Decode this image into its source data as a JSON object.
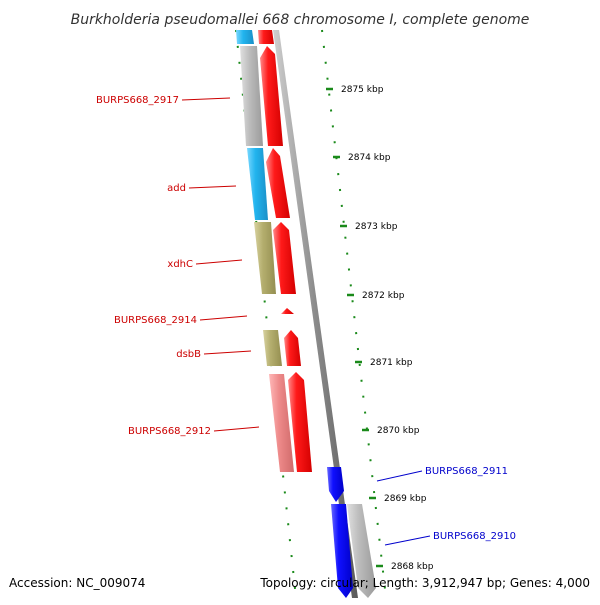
{
  "title": "Burkholderia pseudomallei 668 chromosome I, complete genome",
  "footer": {
    "accession": "Accession: NC_009074",
    "summary": "Topology: circular; Length: 3,912,947 bp; Genes: 4,000"
  },
  "scale_labels": [
    "2875 kbp",
    "2874 kbp",
    "2873 kbp",
    "2872 kbp",
    "2871 kbp",
    "2870 kbp",
    "2869 kbp",
    "2868 kbp"
  ],
  "gene_labels": [
    {
      "text": "BURPS668_2917",
      "color": "#cc0000"
    },
    {
      "text": "add",
      "color": "#cc0000"
    },
    {
      "text": "xdhC",
      "color": "#cc0000"
    },
    {
      "text": "BURPS668_2914",
      "color": "#cc0000"
    },
    {
      "text": "dsbB",
      "color": "#cc0000"
    },
    {
      "text": "BURPS668_2912",
      "color": "#cc0000"
    },
    {
      "text": "BURPS668_2911",
      "color": "#0000cc"
    },
    {
      "text": "BURPS668_2910",
      "color": "#0000cc"
    }
  ],
  "colors": {
    "forward_strand": "#ff0000",
    "reverse_strand": "#0000ff",
    "backbone": "#8a8a8a",
    "tick": "#1a8a1a",
    "cog_grey": "#b4b4b4",
    "cog_cyan": "#22b4ee",
    "cog_olive": "#b4ae6e",
    "cog_pink": "#ee8a8a"
  }
}
